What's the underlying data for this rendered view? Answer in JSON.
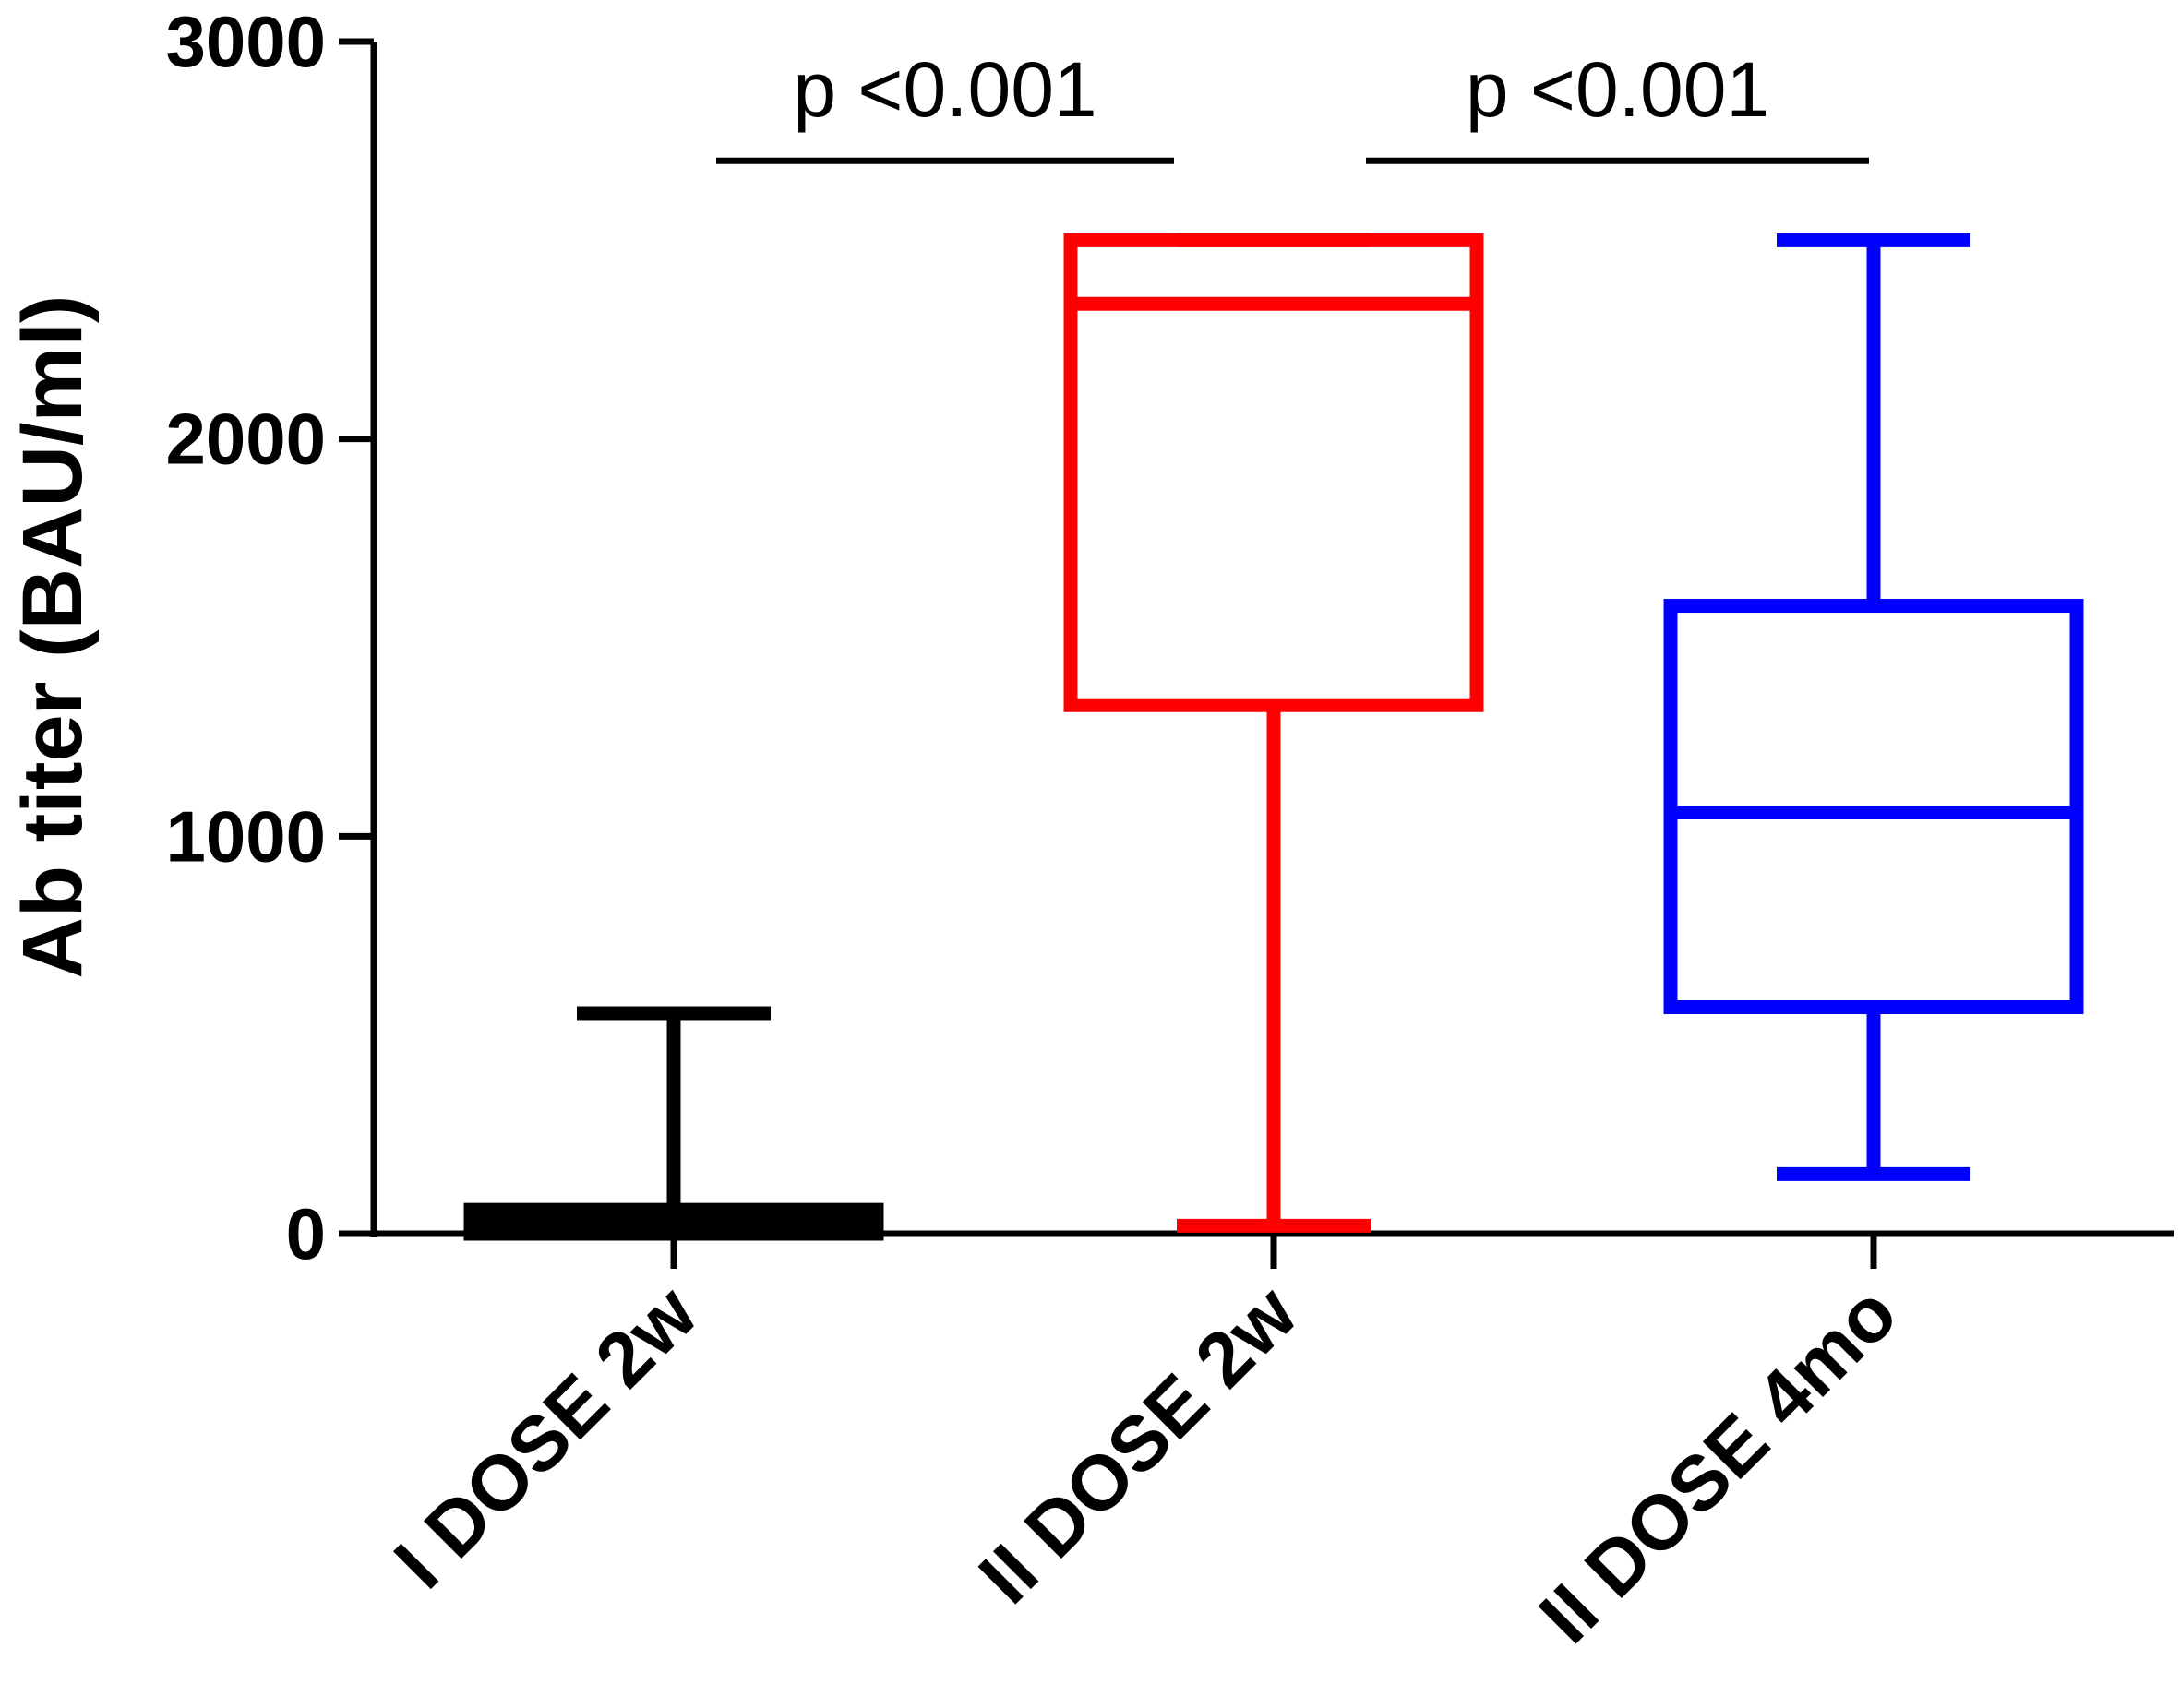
{
  "chart_data": {
    "type": "box",
    "ylabel": "Ab titer (BAU/ml)",
    "xlabel": "",
    "ylim": [
      0,
      3000
    ],
    "yticks": [
      0,
      1000,
      2000,
      3000
    ],
    "yticklabels": [
      "0",
      "1000",
      "2000",
      "3000"
    ],
    "categories": [
      "I DOSE 2w",
      "II DOSE 2w",
      "II DOSE 4mo"
    ],
    "series": [
      {
        "category": "I DOSE 2w",
        "color": "#000000",
        "min": 0,
        "q1": 0,
        "median": 30,
        "q3": 60,
        "max": 555
      },
      {
        "category": "II DOSE 2w",
        "color": "#ff0000",
        "min": 20,
        "q1": 1330,
        "median": 2340,
        "q3": 2500,
        "max": 2500
      },
      {
        "category": "II DOSE 4mo",
        "color": "#0000ff",
        "min": 150,
        "q1": 570,
        "median": 1060,
        "q3": 1580,
        "max": 2500
      }
    ],
    "annotations": [
      {
        "text": "p <0.001",
        "from": "I DOSE 2w",
        "to": "II DOSE 2w",
        "y": 2700
      },
      {
        "text": "p <0.001",
        "from": "II DOSE 2w",
        "to": "II DOSE 4mo",
        "y": 2700
      }
    ],
    "grid": false,
    "legend": "none"
  }
}
